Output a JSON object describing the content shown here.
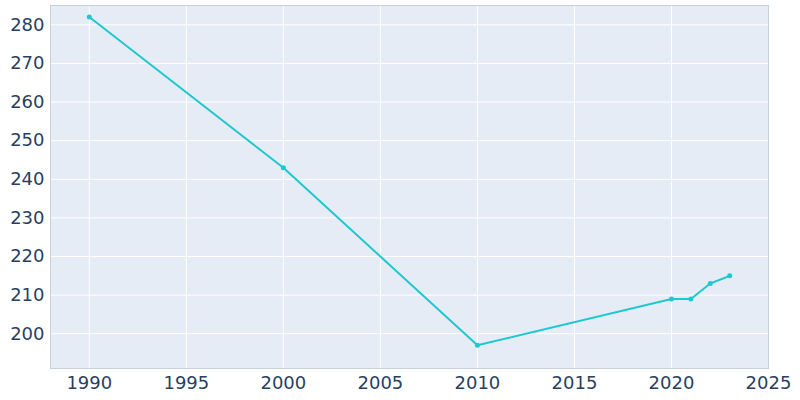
{
  "chart_data": {
    "type": "line",
    "x": [
      1990,
      2000,
      2010,
      2020,
      2021,
      2022,
      2023
    ],
    "values": [
      282,
      243,
      197,
      209,
      209,
      213,
      215
    ],
    "color": "#1fc8cf",
    "marker": "circle",
    "xlim": [
      1988,
      2025
    ],
    "xticks": [
      1990,
      1995,
      2000,
      2005,
      2010,
      2015,
      2020,
      2025
    ],
    "ylim": [
      191,
      285
    ],
    "yticks": [
      200,
      210,
      220,
      230,
      240,
      250,
      260,
      270,
      280
    ],
    "grid": true
  }
}
